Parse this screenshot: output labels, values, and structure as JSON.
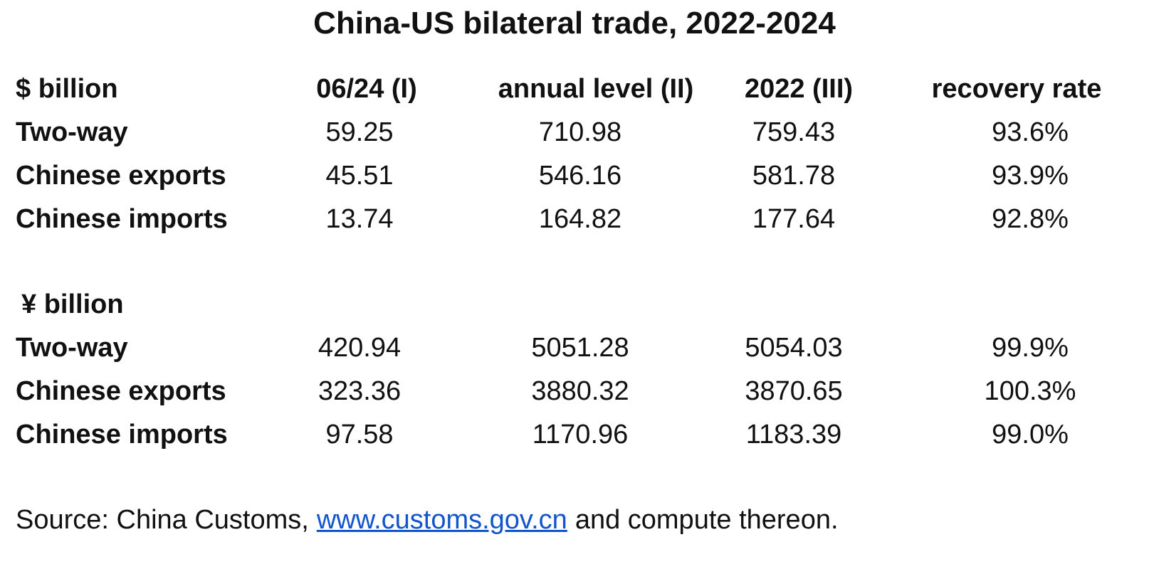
{
  "title": "China-US bilateral trade, 2022-2024",
  "columns": [
    "06/24 (I)",
    "annual level (II)",
    "2022 (III)",
    "recovery rate"
  ],
  "sections": [
    {
      "unit": "$ billion",
      "rows": [
        {
          "label": "Two-way",
          "values": [
            "59.25",
            "710.98",
            "759.43",
            "93.6%"
          ]
        },
        {
          "label": "Chinese exports",
          "values": [
            "45.51",
            "546.16",
            "581.78",
            "93.9%"
          ]
        },
        {
          "label": "Chinese imports",
          "values": [
            "13.74",
            "164.82",
            "177.64",
            "92.8%"
          ]
        }
      ]
    },
    {
      "unit": "¥ billion",
      "rows": [
        {
          "label": "Two-way",
          "values": [
            "420.94",
            "5051.28",
            "5054.03",
            "99.9%"
          ]
        },
        {
          "label": "Chinese exports",
          "values": [
            "323.36",
            "3880.32",
            "3870.65",
            "100.3%"
          ]
        },
        {
          "label": "Chinese imports",
          "values": [
            "97.58",
            "1170.96",
            "1183.39",
            "99.0%"
          ]
        }
      ]
    }
  ],
  "source": {
    "text": "Source: China Customs,",
    "link": "www.customs.gov.cn",
    "tail": "and compute thereon."
  }
}
